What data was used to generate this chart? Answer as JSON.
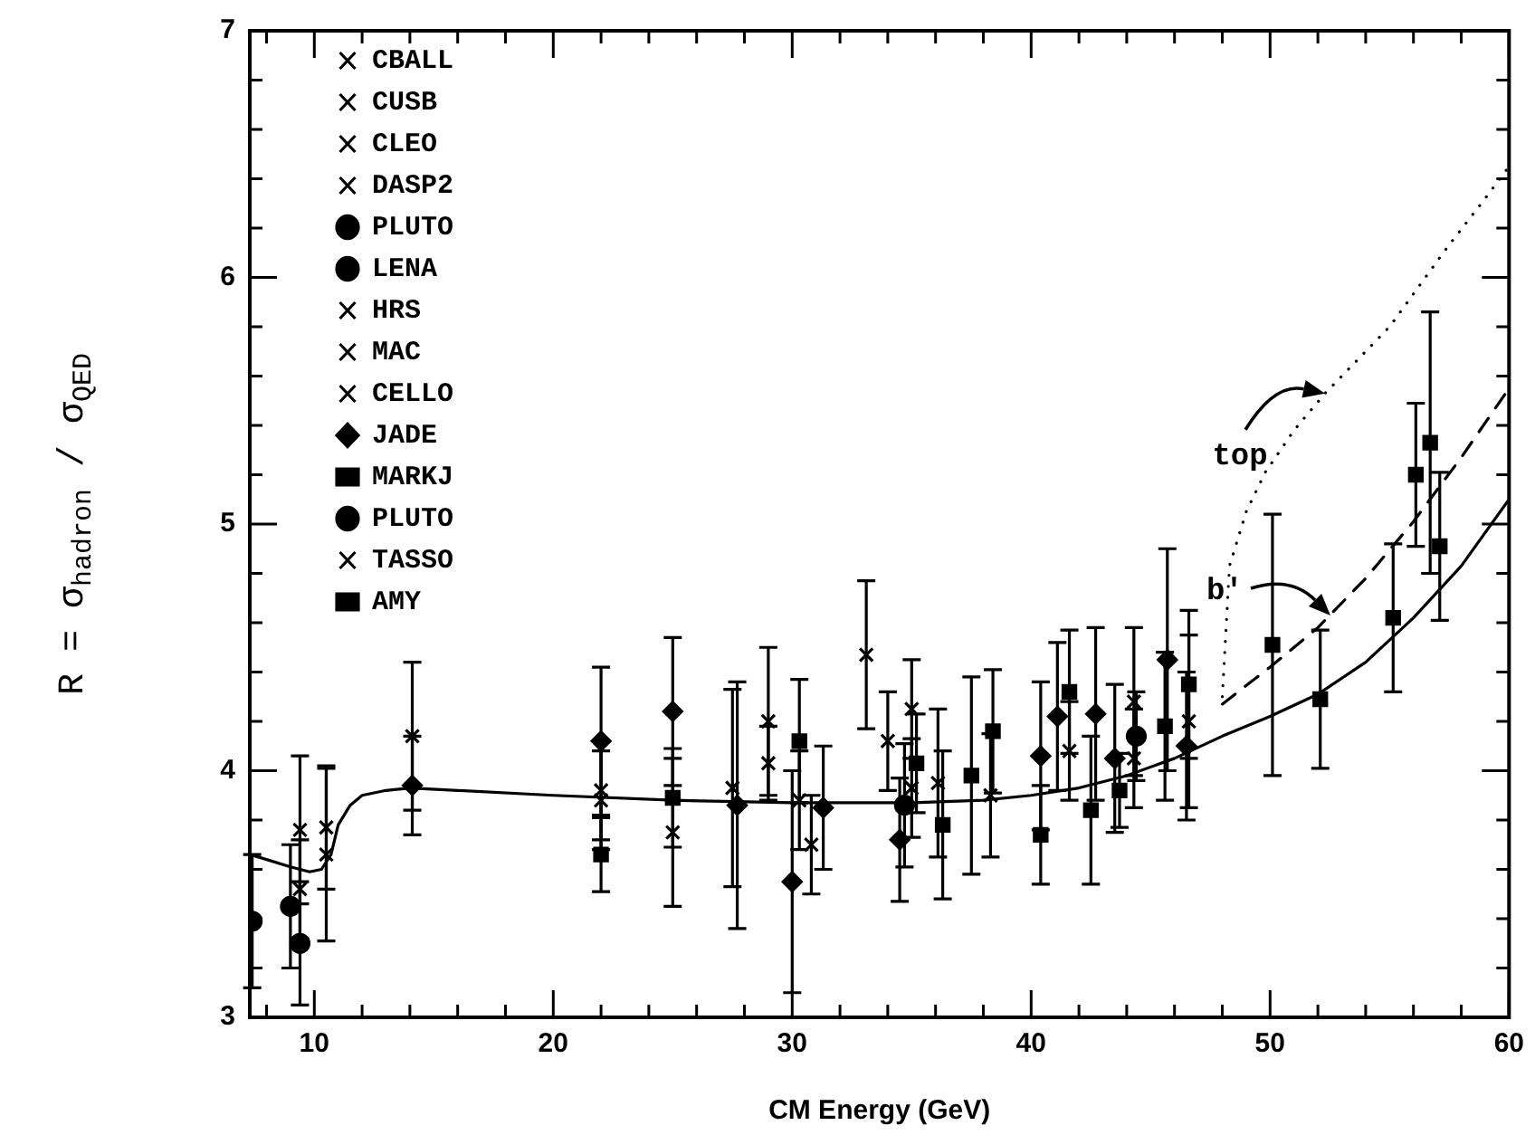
{
  "chart_data": {
    "type": "scatter",
    "xlabel": "CM Energy (GeV)",
    "ylabel": "R = σ$_{hadron}$ / σ$_{QED}$",
    "xlim": [
      7.3,
      60
    ],
    "ylim": [
      3,
      7
    ],
    "xticks": [
      {
        "value": 8,
        "label": null
      },
      10,
      {
        "value": 12,
        "label": null
      },
      {
        "value": 14,
        "label": null
      },
      {
        "value": 16,
        "label": null
      },
      {
        "value": 18,
        "label": null
      },
      20,
      {
        "value": 22,
        "label": null
      },
      {
        "value": 24,
        "label": null
      },
      {
        "value": 26,
        "label": null
      },
      {
        "value": 28,
        "label": null
      },
      30,
      {
        "value": 32,
        "label": null
      },
      {
        "value": 34,
        "label": null
      },
      {
        "value": 36,
        "label": null
      },
      {
        "value": 38,
        "label": null
      },
      40,
      {
        "value": 42,
        "label": null
      },
      {
        "value": 44,
        "label": null
      },
      {
        "value": 46,
        "label": null
      },
      {
        "value": 48,
        "label": null
      },
      50,
      {
        "value": 52,
        "label": null
      },
      {
        "value": 54,
        "label": null
      },
      {
        "value": 56,
        "label": null
      },
      {
        "value": 58,
        "label": null
      },
      60
    ],
    "yticks": [
      3,
      {
        "value": 3.2,
        "label": null
      },
      {
        "value": 3.4,
        "label": null
      },
      {
        "value": 3.6,
        "label": null
      },
      {
        "value": 3.8,
        "label": null
      },
      4,
      {
        "value": 4.2,
        "label": null
      },
      {
        "value": 4.4,
        "label": null
      },
      {
        "value": 4.6,
        "label": null
      },
      {
        "value": 4.8,
        "label": null
      },
      5,
      {
        "value": 5.2,
        "label": null
      },
      {
        "value": 5.4,
        "label": null
      },
      {
        "value": 5.6,
        "label": null
      },
      {
        "value": 5.8,
        "label": null
      },
      6,
      {
        "value": 6.2,
        "label": null
      },
      {
        "value": 6.4,
        "label": null
      },
      {
        "value": 6.6,
        "label": null
      },
      {
        "value": 6.8,
        "label": null
      },
      7
    ],
    "grid": false,
    "legend": "top left",
    "annotations": [
      {
        "text": "top",
        "x": 52.3,
        "y": 5.53
      },
      {
        "text": "b'",
        "x": 52.5,
        "y": 4.63
      }
    ],
    "series": [
      {
        "name": "CBALL",
        "color": "#000000",
        "marker": "cross",
        "x": [
          9.4
        ],
        "values": [
          3.52
        ],
        "errors": [
          0.2
        ]
      },
      {
        "name": "CUSB",
        "color": "#000000",
        "marker": "cross",
        "x": [
          9.4
        ],
        "values": [
          3.76
        ],
        "errors": [
          0.3
        ]
      },
      {
        "name": "CLEO",
        "color": "#000000",
        "marker": "cross",
        "x": [
          10.5
        ],
        "values": [
          3.77
        ],
        "errors": [
          0.25
        ]
      },
      {
        "name": "DASP2",
        "color": "#000000",
        "marker": "cross",
        "x": [
          10.5
        ],
        "values": [
          3.66
        ],
        "errors": [
          0.35
        ]
      },
      {
        "name": "PLUTO",
        "color": "#000000",
        "marker": "circle",
        "x": [
          9.4
        ],
        "values": [
          3.3
        ],
        "errors": [
          0.25
        ]
      },
      {
        "name": "LENA",
        "color": "#000000",
        "marker": "circle",
        "x": [
          7.4,
          9.0
        ],
        "values": [
          3.39,
          3.45
        ],
        "errors": [
          0.27,
          0.25
        ]
      },
      {
        "name": "HRS",
        "color": "#000000",
        "marker": "cross",
        "x": [
          29.0
        ],
        "values": [
          4.2
        ],
        "errors": [
          0.3
        ]
      },
      {
        "name": "MAC",
        "color": "#000000",
        "marker": "cross",
        "x": [
          29.0
        ],
        "values": [
          4.03
        ],
        "errors": [
          0.15
        ]
      },
      {
        "name": "CELLO",
        "color": "#000000",
        "marker": "cross",
        "x": [
          22.0,
          30.3,
          35.0,
          38.3,
          44.3,
          46.6
        ],
        "values": [
          3.88,
          3.88,
          3.93,
          3.9,
          4.05,
          4.2
        ],
        "errors": [
          0.2,
          0.2,
          0.2,
          0.25,
          0.2,
          0.35
        ]
      },
      {
        "name": "JADE",
        "color": "#000000",
        "marker": "diamond",
        "x": [
          14.1,
          22.0,
          25.0,
          27.7,
          30.0,
          31.3,
          34.5,
          40.4,
          41.1,
          42.7,
          43.5,
          45.7,
          46.5
        ],
        "values": [
          3.94,
          4.12,
          4.24,
          3.86,
          3.55,
          3.85,
          3.72,
          4.06,
          4.22,
          4.23,
          4.05,
          4.45,
          4.1
        ],
        "errors": [
          0.2,
          0.3,
          0.3,
          0.5,
          0.45,
          0.25,
          0.25,
          0.3,
          0.3,
          0.35,
          0.3,
          0.45,
          0.3
        ]
      },
      {
        "name": "MARKJ",
        "color": "#000000",
        "marker": "square",
        "x": [
          22.0,
          25.0,
          30.3,
          35.2,
          36.3,
          37.5,
          38.4,
          40.4,
          41.6,
          42.5,
          43.7,
          45.6,
          46.6
        ],
        "values": [
          3.66,
          3.89,
          4.12,
          4.03,
          3.78,
          3.98,
          4.16,
          3.74,
          4.32,
          3.84,
          3.92,
          4.18,
          4.35
        ],
        "errors": [
          0.15,
          0.2,
          0.25,
          0.2,
          0.3,
          0.4,
          0.25,
          0.2,
          0.25,
          0.3,
          0.15,
          0.3,
          0.3
        ]
      },
      {
        "name": "PLUTO",
        "color": "#000000",
        "marker": "circle",
        "x": [
          34.7,
          44.4
        ],
        "values": [
          3.86,
          4.14
        ],
        "errors": [
          0.25,
          0.18
        ]
      },
      {
        "name": "TASSO",
        "color": "#000000",
        "marker": "cross",
        "x": [
          14.1,
          22.0,
          25.0,
          27.5,
          30.8,
          33.1,
          34.0,
          35.0,
          36.1,
          41.6,
          44.3
        ],
        "values": [
          4.14,
          3.92,
          3.75,
          3.93,
          3.7,
          4.47,
          4.12,
          4.25,
          3.95,
          4.08,
          4.28
        ],
        "errors": [
          0.3,
          0.2,
          0.3,
          0.4,
          0.2,
          0.3,
          0.2,
          0.2,
          0.3,
          0.2,
          0.3
        ]
      },
      {
        "name": "AMY",
        "color": "#000000",
        "marker": "square",
        "x": [
          50.1,
          52.1,
          55.15,
          56.1,
          56.7,
          57.1
        ],
        "values": [
          4.51,
          4.29,
          4.62,
          5.2,
          5.33,
          4.91
        ],
        "errors": [
          0.53,
          0.28,
          0.3,
          0.29,
          0.53,
          0.3
        ]
      },
      {
        "type": "line",
        "color": "#000000",
        "marker": "none",
        "line_style": "solid",
        "x": [
          7.3,
          8,
          9,
          9.8,
          10.3,
          10.7,
          11,
          11.5,
          12,
          13,
          14,
          16,
          20,
          25,
          30,
          35,
          38,
          40,
          42,
          44,
          46,
          48,
          50,
          52,
          54,
          56,
          58,
          60
        ],
        "values": [
          3.66,
          3.64,
          3.61,
          3.59,
          3.6,
          3.66,
          3.78,
          3.86,
          3.9,
          3.92,
          3.93,
          3.92,
          3.9,
          3.88,
          3.87,
          3.87,
          3.88,
          3.9,
          3.93,
          3.98,
          4.05,
          4.14,
          4.22,
          4.31,
          4.44,
          4.62,
          4.83,
          5.1
        ]
      },
      {
        "type": "line",
        "color": "#000000",
        "marker": "none",
        "line_style": "dashed",
        "x": [
          48,
          50,
          52,
          54,
          56,
          58,
          60
        ],
        "values": [
          4.27,
          4.42,
          4.58,
          4.78,
          5.01,
          5.27,
          5.55
        ]
      },
      {
        "type": "line",
        "color": "#000000",
        "marker": "none",
        "line_style": "dotted",
        "x": [
          48,
          48.3,
          49,
          49.8,
          51,
          52.3,
          54,
          55,
          57.4,
          59,
          60
        ],
        "values": [
          4.3,
          4.83,
          5.05,
          5.21,
          5.38,
          5.53,
          5.7,
          5.8,
          6.12,
          6.32,
          6.45
        ]
      }
    ]
  }
}
